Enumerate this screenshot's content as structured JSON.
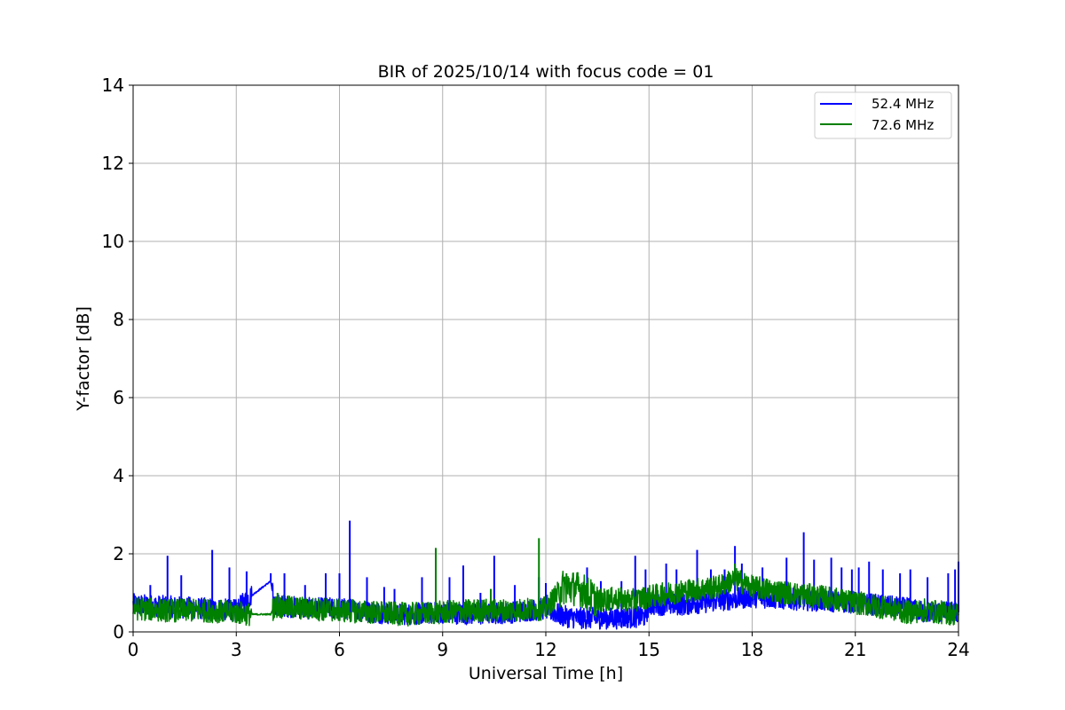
{
  "chart_data": {
    "type": "line",
    "title": "BIR of 2025/10/14 with focus code = 01",
    "xlabel": "Universal Time [h]",
    "ylabel": "Y-factor [dB]",
    "xlim": [
      0,
      24
    ],
    "ylim": [
      0,
      14
    ],
    "xticks": [
      0,
      3,
      6,
      9,
      12,
      15,
      18,
      21,
      24
    ],
    "yticks": [
      0,
      2,
      4,
      6,
      8,
      10,
      12,
      14
    ],
    "grid": true,
    "legend_position": "top-right",
    "series": [
      {
        "name": "52.4 MHz",
        "color": "#0000ff",
        "baseline": [
          [
            0,
            0.7
          ],
          [
            1,
            0.65
          ],
          [
            2,
            0.6
          ],
          [
            3,
            0.55
          ],
          [
            3.4,
            0.9
          ],
          [
            4.0,
            1.3
          ],
          [
            4.1,
            0.7
          ],
          [
            5,
            0.6
          ],
          [
            6,
            0.6
          ],
          [
            7,
            0.5
          ],
          [
            8,
            0.45
          ],
          [
            9,
            0.5
          ],
          [
            10,
            0.45
          ],
          [
            11,
            0.5
          ],
          [
            12,
            0.6
          ],
          [
            12.5,
            0.4
          ],
          [
            13,
            0.35
          ],
          [
            14,
            0.35
          ],
          [
            14.9,
            0.4
          ],
          [
            15,
            0.7
          ],
          [
            16,
            0.7
          ],
          [
            17,
            0.8
          ],
          [
            18,
            0.9
          ],
          [
            19,
            0.85
          ],
          [
            20,
            0.8
          ],
          [
            21,
            0.75
          ],
          [
            22,
            0.65
          ],
          [
            22.5,
            0.6
          ],
          [
            23,
            0.5
          ],
          [
            24,
            0.5
          ]
        ],
        "spikes": [
          [
            0.5,
            1.2
          ],
          [
            1.0,
            1.95
          ],
          [
            1.4,
            1.45
          ],
          [
            2.3,
            2.1
          ],
          [
            2.8,
            1.65
          ],
          [
            3.3,
            1.55
          ],
          [
            4.0,
            1.5
          ],
          [
            4.4,
            1.5
          ],
          [
            5.0,
            1.2
          ],
          [
            5.6,
            1.5
          ],
          [
            6.0,
            1.5
          ],
          [
            6.3,
            2.85
          ],
          [
            6.8,
            1.4
          ],
          [
            7.3,
            1.15
          ],
          [
            7.6,
            1.1
          ],
          [
            8.4,
            1.4
          ],
          [
            9.2,
            1.4
          ],
          [
            9.6,
            1.7
          ],
          [
            10.1,
            1.0
          ],
          [
            10.5,
            1.95
          ],
          [
            11.1,
            1.2
          ],
          [
            11.8,
            1.4
          ],
          [
            12.0,
            1.25
          ],
          [
            13.2,
            1.65
          ],
          [
            13.6,
            1.3
          ],
          [
            14.2,
            1.3
          ],
          [
            14.6,
            1.95
          ],
          [
            14.9,
            1.6
          ],
          [
            15.5,
            1.75
          ],
          [
            15.8,
            1.6
          ],
          [
            16.4,
            2.1
          ],
          [
            16.8,
            1.6
          ],
          [
            17.2,
            1.6
          ],
          [
            17.5,
            2.2
          ],
          [
            17.7,
            1.75
          ],
          [
            18.3,
            1.65
          ],
          [
            19.0,
            1.9
          ],
          [
            19.5,
            2.55
          ],
          [
            19.8,
            1.85
          ],
          [
            20.3,
            1.9
          ],
          [
            20.6,
            1.65
          ],
          [
            20.9,
            1.6
          ],
          [
            21.1,
            1.65
          ],
          [
            21.4,
            1.8
          ],
          [
            21.8,
            1.6
          ],
          [
            22.3,
            1.5
          ],
          [
            22.6,
            1.6
          ],
          [
            23.1,
            1.4
          ],
          [
            23.7,
            1.5
          ],
          [
            23.9,
            1.6
          ],
          [
            24.0,
            1.8
          ]
        ]
      },
      {
        "name": "72.6 MHz",
        "color": "#008000",
        "baseline": [
          [
            0,
            0.6
          ],
          [
            1,
            0.55
          ],
          [
            2,
            0.55
          ],
          [
            3,
            0.5
          ],
          [
            3.4,
            0.45
          ],
          [
            4.0,
            0.45
          ],
          [
            4.1,
            0.65
          ],
          [
            5,
            0.6
          ],
          [
            6,
            0.55
          ],
          [
            7,
            0.5
          ],
          [
            8,
            0.45
          ],
          [
            9,
            0.5
          ],
          [
            10,
            0.55
          ],
          [
            11,
            0.55
          ],
          [
            12,
            0.6
          ],
          [
            12.5,
            1.15
          ],
          [
            13,
            1.1
          ],
          [
            13.5,
            0.8
          ],
          [
            14,
            0.85
          ],
          [
            14.5,
            0.8
          ],
          [
            15,
            0.9
          ],
          [
            16,
            1.05
          ],
          [
            17,
            1.15
          ],
          [
            17.5,
            1.35
          ],
          [
            18,
            1.15
          ],
          [
            19,
            1.0
          ],
          [
            20,
            0.9
          ],
          [
            21,
            0.75
          ],
          [
            22,
            0.6
          ],
          [
            22.5,
            0.5
          ],
          [
            23,
            0.55
          ],
          [
            24,
            0.45
          ]
        ],
        "spikes": [
          [
            8.8,
            2.15
          ],
          [
            11.8,
            2.4
          ],
          [
            4.2,
            1.0
          ],
          [
            10.4,
            1.1
          ],
          [
            12.6,
            1.5
          ],
          [
            17.5,
            1.75
          ]
        ]
      }
    ]
  }
}
